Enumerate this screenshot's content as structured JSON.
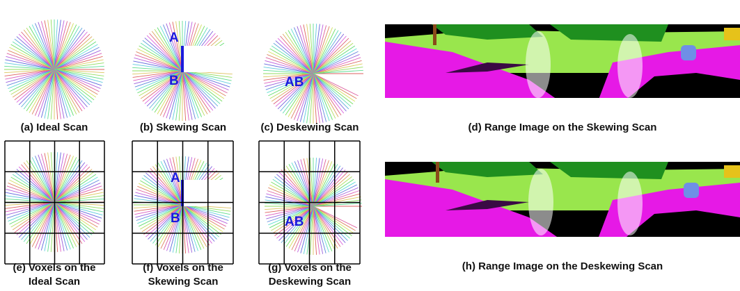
{
  "panels": [
    {
      "caption": [
        "(a) Ideal Scan"
      ]
    },
    {
      "caption": [
        "(b) Skewing Scan"
      ],
      "labels": [
        "A",
        "B"
      ]
    },
    {
      "caption": [
        "(c) Deskewing Scan"
      ],
      "labels": [
        "AB"
      ]
    },
    {
      "caption": [
        "(d) Range Image on the Skewing Scan"
      ]
    },
    {
      "caption": [
        "(e) Voxels on the",
        "Ideal Scan"
      ]
    },
    {
      "caption": [
        "(f) Voxels on the",
        "Skewing Scan"
      ],
      "labels": [
        "A",
        "B"
      ]
    },
    {
      "caption": [
        "(g) Voxels on the",
        "Deskewing Scan"
      ],
      "labels": [
        "AB"
      ]
    },
    {
      "caption": [
        "(h) Range Image on the Deskewing Scan"
      ]
    }
  ]
}
